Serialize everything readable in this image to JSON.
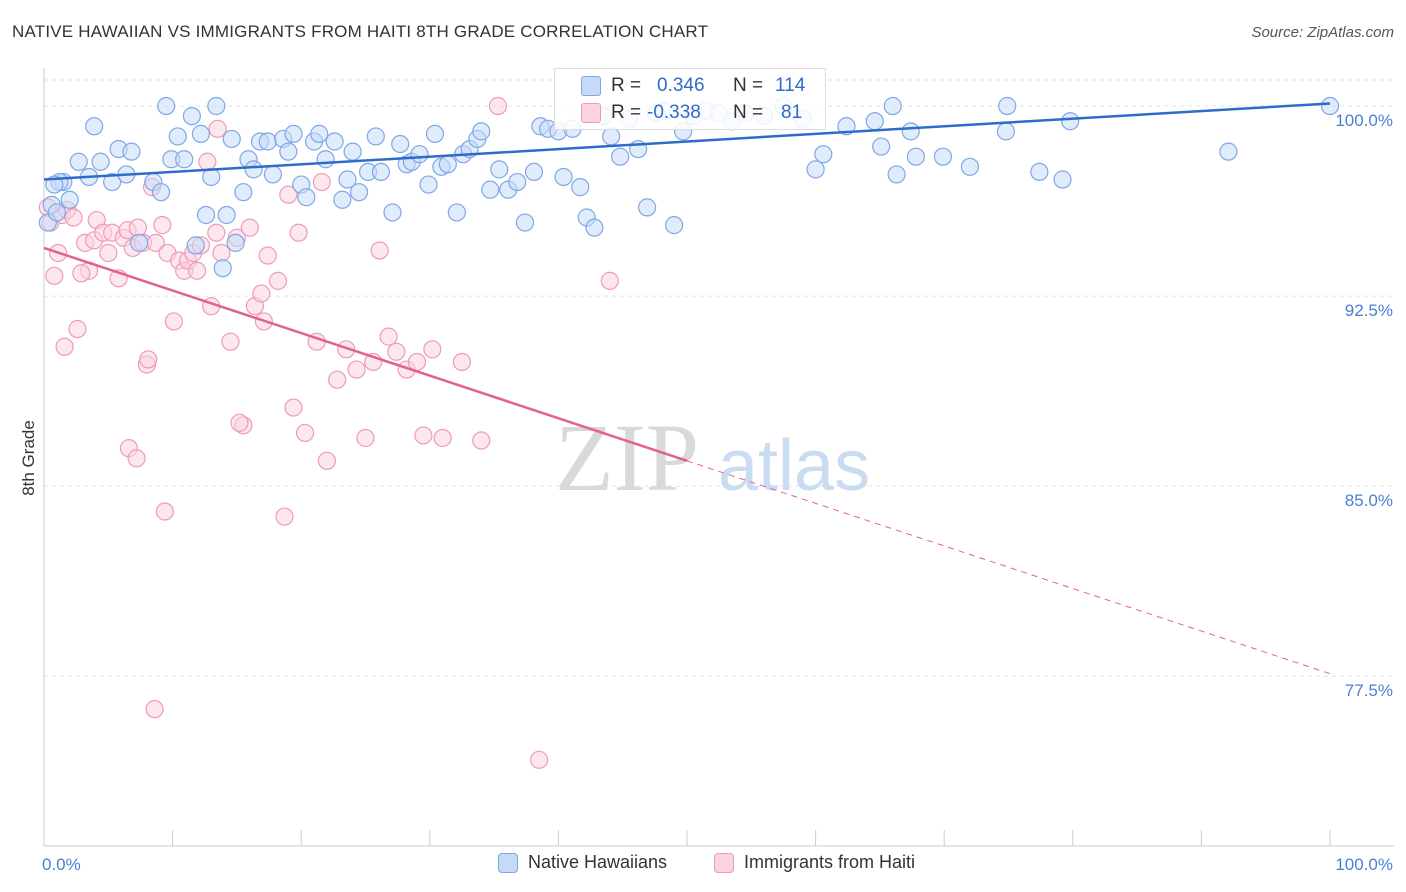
{
  "title": "NATIVE HAWAIIAN VS IMMIGRANTS FROM HAITI 8TH GRADE CORRELATION CHART",
  "source": "Source: ZipAtlas.com",
  "watermark": {
    "zip": "ZIP",
    "atlas": "atlas"
  },
  "stats": [
    {
      "r_label": "R =",
      "r_value": "0.346",
      "n_label": "N =",
      "n_value": "114",
      "color": "#6ea0e8"
    },
    {
      "r_label": "R =",
      "r_value": "-0.338",
      "n_label": "N =",
      "n_value": "81",
      "color": "#f09ab8"
    }
  ],
  "legend": [
    {
      "label": "Native Hawaiians",
      "fill": "#c6daf7",
      "stroke": "#7ea8e6"
    },
    {
      "label": "Immigrants from Haiti",
      "fill": "#fbd3e0",
      "stroke": "#ee9ab8"
    }
  ],
  "colors": {
    "blue": "#2f6cc9",
    "pink": "#e0628f",
    "tick_text": "#4a7fd4",
    "grid": "#e3e3e3"
  },
  "chart_data": {
    "type": "scatter",
    "ylabel": "8th Grade",
    "xlabel": "",
    "xlim": [
      0,
      100
    ],
    "ylim": [
      70.8,
      101.5
    ],
    "x_tick_labels": [
      {
        "value": 0,
        "label": "0.0%"
      },
      {
        "value": 100,
        "label": "100.0%"
      }
    ],
    "y_ticks": [
      {
        "value": 100.0,
        "label": "100.0%"
      },
      {
        "value": 92.5,
        "label": "92.5%"
      },
      {
        "value": 85.0,
        "label": "85.0%"
      },
      {
        "value": 77.5,
        "label": "77.5%"
      }
    ],
    "grid": true,
    "legend_position": "bottom",
    "series": [
      {
        "name": "Native Hawaiians",
        "color": "#6ea0e8",
        "trend": {
          "x0": 0,
          "y0": 97.1,
          "x1": 100,
          "y1": 100.1
        },
        "points": [
          [
            0.3,
            95.4
          ],
          [
            0.6,
            96.1
          ],
          [
            1.0,
            95.8
          ],
          [
            1.5,
            97.0
          ],
          [
            2.0,
            96.3
          ],
          [
            1.2,
            97.0
          ],
          [
            2.7,
            97.8
          ],
          [
            3.5,
            97.2
          ],
          [
            3.9,
            99.2
          ],
          [
            4.4,
            97.8
          ],
          [
            5.3,
            97.0
          ],
          [
            5.8,
            98.3
          ],
          [
            6.4,
            97.3
          ],
          [
            6.8,
            98.2
          ],
          [
            7.4,
            94.6
          ],
          [
            8.5,
            97.0
          ],
          [
            9.1,
            96.6
          ],
          [
            9.5,
            100.0
          ],
          [
            9.9,
            97.9
          ],
          [
            10.4,
            98.8
          ],
          [
            10.9,
            97.9
          ],
          [
            11.5,
            99.6
          ],
          [
            11.8,
            94.5
          ],
          [
            12.2,
            98.9
          ],
          [
            12.6,
            95.7
          ],
          [
            13.0,
            97.2
          ],
          [
            13.4,
            100.0
          ],
          [
            13.9,
            93.6
          ],
          [
            14.2,
            95.7
          ],
          [
            14.6,
            98.7
          ],
          [
            14.9,
            94.6
          ],
          [
            15.5,
            96.6
          ],
          [
            15.9,
            97.9
          ],
          [
            16.3,
            97.5
          ],
          [
            16.8,
            98.6
          ],
          [
            17.4,
            98.6
          ],
          [
            17.8,
            97.3
          ],
          [
            18.6,
            98.7
          ],
          [
            19.0,
            98.2
          ],
          [
            19.4,
            98.9
          ],
          [
            20.0,
            96.9
          ],
          [
            20.4,
            96.4
          ],
          [
            21.0,
            98.6
          ],
          [
            21.4,
            98.9
          ],
          [
            21.9,
            97.9
          ],
          [
            22.6,
            98.6
          ],
          [
            23.2,
            96.3
          ],
          [
            23.6,
            97.1
          ],
          [
            24.0,
            98.2
          ],
          [
            24.5,
            96.6
          ],
          [
            25.2,
            97.4
          ],
          [
            25.8,
            98.8
          ],
          [
            26.2,
            97.4
          ],
          [
            27.1,
            95.8
          ],
          [
            27.7,
            98.5
          ],
          [
            28.2,
            97.7
          ],
          [
            28.6,
            97.8
          ],
          [
            29.2,
            98.1
          ],
          [
            29.9,
            96.9
          ],
          [
            30.4,
            98.9
          ],
          [
            30.9,
            97.6
          ],
          [
            31.4,
            97.7
          ],
          [
            32.1,
            95.8
          ],
          [
            32.6,
            98.1
          ],
          [
            33.1,
            98.3
          ],
          [
            33.7,
            98.7
          ],
          [
            34.0,
            99.0
          ],
          [
            34.7,
            96.7
          ],
          [
            35.4,
            97.5
          ],
          [
            36.1,
            96.7
          ],
          [
            36.8,
            97.0
          ],
          [
            37.4,
            95.4
          ],
          [
            38.1,
            97.4
          ],
          [
            38.6,
            99.2
          ],
          [
            39.2,
            99.1
          ],
          [
            40.0,
            99.0
          ],
          [
            40.4,
            97.2
          ],
          [
            41.1,
            99.1
          ],
          [
            41.7,
            96.8
          ],
          [
            42.2,
            95.6
          ],
          [
            42.8,
            95.2
          ],
          [
            43.5,
            99.6
          ],
          [
            44.1,
            98.8
          ],
          [
            44.8,
            98.0
          ],
          [
            45.5,
            99.5
          ],
          [
            46.2,
            98.3
          ],
          [
            46.9,
            96.0
          ],
          [
            47.6,
            99.7
          ],
          [
            48.3,
            99.8
          ],
          [
            49.0,
            95.3
          ],
          [
            49.7,
            99.0
          ],
          [
            50.5,
            99.6
          ],
          [
            51.5,
            99.8
          ],
          [
            52.5,
            99.7
          ],
          [
            53.5,
            99.4
          ],
          [
            54.5,
            99.7
          ],
          [
            56.0,
            99.6
          ],
          [
            57.5,
            100.0
          ],
          [
            59.0,
            99.5
          ],
          [
            60.0,
            97.5
          ],
          [
            60.6,
            98.1
          ],
          [
            62.4,
            99.2
          ],
          [
            64.6,
            99.4
          ],
          [
            65.1,
            98.4
          ],
          [
            66.0,
            100.0
          ],
          [
            66.3,
            97.3
          ],
          [
            67.4,
            99.0
          ],
          [
            67.8,
            98.0
          ],
          [
            69.9,
            98.0
          ],
          [
            72.0,
            97.6
          ],
          [
            74.8,
            99.0
          ],
          [
            74.9,
            100.0
          ],
          [
            77.4,
            97.4
          ],
          [
            79.2,
            97.1
          ],
          [
            79.8,
            99.4
          ],
          [
            92.1,
            98.2
          ],
          [
            100.0,
            100.0
          ],
          [
            0.8,
            96.9
          ]
        ]
      },
      {
        "name": "Immigrants from Haiti",
        "color": "#f09ab8",
        "trend": {
          "x0": 0,
          "y0": 94.4,
          "x1": 50,
          "y1": 86.0,
          "x_dash_end": 100,
          "y_dash_end": 77.6
        },
        "points": [
          [
            0.3,
            96.0
          ],
          [
            0.5,
            95.4
          ],
          [
            0.8,
            93.3
          ],
          [
            1.1,
            94.2
          ],
          [
            1.4,
            95.7
          ],
          [
            1.8,
            95.9
          ],
          [
            2.3,
            95.6
          ],
          [
            2.6,
            91.2
          ],
          [
            3.2,
            94.6
          ],
          [
            3.5,
            93.5
          ],
          [
            3.9,
            94.7
          ],
          [
            4.1,
            95.5
          ],
          [
            4.6,
            95.0
          ],
          [
            5.0,
            94.2
          ],
          [
            5.3,
            95.0
          ],
          [
            5.8,
            93.2
          ],
          [
            6.2,
            94.8
          ],
          [
            6.5,
            95.1
          ],
          [
            6.9,
            94.4
          ],
          [
            7.3,
            95.2
          ],
          [
            7.7,
            94.6
          ],
          [
            8.0,
            89.8
          ],
          [
            8.4,
            96.8
          ],
          [
            8.7,
            94.6
          ],
          [
            9.2,
            95.3
          ],
          [
            9.6,
            94.2
          ],
          [
            10.1,
            91.5
          ],
          [
            10.5,
            93.9
          ],
          [
            10.9,
            93.5
          ],
          [
            11.2,
            93.9
          ],
          [
            11.6,
            94.2
          ],
          [
            11.9,
            93.5
          ],
          [
            12.2,
            94.5
          ],
          [
            12.7,
            97.8
          ],
          [
            13.0,
            92.1
          ],
          [
            13.4,
            95.0
          ],
          [
            13.8,
            94.2
          ],
          [
            14.5,
            90.7
          ],
          [
            15.0,
            94.8
          ],
          [
            15.5,
            87.4
          ],
          [
            16.0,
            95.2
          ],
          [
            16.4,
            92.1
          ],
          [
            16.9,
            92.6
          ],
          [
            17.4,
            94.1
          ],
          [
            18.2,
            93.1
          ],
          [
            18.7,
            83.8
          ],
          [
            19.0,
            96.5
          ],
          [
            19.4,
            88.1
          ],
          [
            19.8,
            95.0
          ],
          [
            20.3,
            87.1
          ],
          [
            21.2,
            90.7
          ],
          [
            22.0,
            86.0
          ],
          [
            22.8,
            89.2
          ],
          [
            23.5,
            90.4
          ],
          [
            24.3,
            89.6
          ],
          [
            25.0,
            86.9
          ],
          [
            25.6,
            89.9
          ],
          [
            26.1,
            94.3
          ],
          [
            26.8,
            90.9
          ],
          [
            27.4,
            90.3
          ],
          [
            28.2,
            89.6
          ],
          [
            29.0,
            89.9
          ],
          [
            29.5,
            87.0
          ],
          [
            30.2,
            90.4
          ],
          [
            31.0,
            86.9
          ],
          [
            32.5,
            89.9
          ],
          [
            34.0,
            86.8
          ],
          [
            35.3,
            100.0
          ],
          [
            38.5,
            74.2
          ],
          [
            44.0,
            93.1
          ],
          [
            1.6,
            90.5
          ],
          [
            2.9,
            93.4
          ],
          [
            6.6,
            86.5
          ],
          [
            7.2,
            86.1
          ],
          [
            8.1,
            90.0
          ],
          [
            8.6,
            76.2
          ],
          [
            9.4,
            84.0
          ],
          [
            13.5,
            99.1
          ],
          [
            15.2,
            87.5
          ],
          [
            17.1,
            91.5
          ],
          [
            21.6,
            97.0
          ]
        ]
      }
    ]
  }
}
